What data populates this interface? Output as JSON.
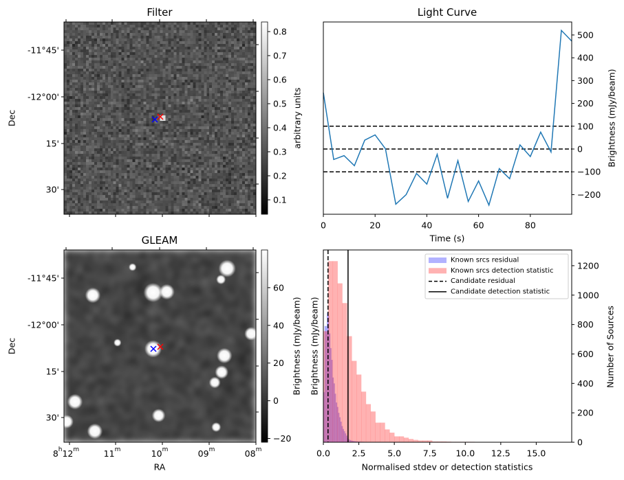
{
  "chart_data": [
    {
      "type": "heatmap",
      "title": "Filter",
      "xlabel": "",
      "ylabel": "Dec",
      "yticks": [
        "-11°45'",
        "-12°00'",
        "15'",
        "30'"
      ],
      "colorbar": {
        "label": "arbitrary units",
        "ticks": [
          "0.8",
          "0.7",
          "0.6",
          "0.5",
          "0.4",
          "0.3",
          "0.2",
          "0.1"
        ],
        "range": [
          0.04,
          0.84
        ],
        "colormap": "gray"
      },
      "markers": [
        {
          "color": "#0000ff",
          "symbol": "x"
        },
        {
          "color": "#ff0000",
          "symbol": "x"
        }
      ]
    },
    {
      "type": "line",
      "title": "Light Curve",
      "xlabel": "Time (s)",
      "ylabel": "Brightness (mJy/beam)",
      "xlim": [
        0,
        96
      ],
      "ylim": [
        -286,
        557
      ],
      "xticks": [
        "0",
        "20",
        "40",
        "60",
        "80"
      ],
      "yticks": [
        "500",
        "400",
        "300",
        "200",
        "100",
        "0",
        "−100",
        "−200"
      ],
      "color": "#1f77b4",
      "x": [
        0,
        4,
        8,
        12,
        16,
        20,
        24,
        28,
        32,
        36,
        40,
        44,
        48,
        52,
        56,
        60,
        64,
        68,
        72,
        76,
        80,
        84,
        88,
        92,
        96
      ],
      "y": [
        247,
        -46,
        -29,
        -73,
        39,
        62,
        1,
        -242,
        -200,
        -107,
        -154,
        -23,
        -216,
        -51,
        -230,
        -140,
        -246,
        -86,
        -130,
        18,
        -33,
        74,
        -13,
        520,
        473
      ],
      "hlines": [
        {
          "y": 100,
          "style": "dashed"
        },
        {
          "y": 0,
          "style": "dashed"
        },
        {
          "y": -100,
          "style": "dashed"
        }
      ]
    },
    {
      "type": "heatmap",
      "title": "GLEAM",
      "xlabel": "RA",
      "ylabel": "Dec",
      "xticks": [
        {
          "h": "8",
          "hs": "h",
          "m": "12",
          "ms": "m"
        },
        {
          "h": "",
          "hs": "",
          "m": "11",
          "ms": "m"
        },
        {
          "h": "",
          "hs": "",
          "m": "10",
          "ms": "m"
        },
        {
          "h": "",
          "hs": "",
          "m": "09",
          "ms": "m"
        },
        {
          "h": "",
          "hs": "",
          "m": "08",
          "ms": "m"
        }
      ],
      "yticks": [
        "-11°45'",
        "-12°00'",
        "15'",
        "30'"
      ],
      "colorbar": {
        "label": "Brightness (mJy/beam)",
        "ticks": [
          "60",
          "40",
          "20",
          "0",
          "−20"
        ],
        "range": [
          -22,
          80
        ],
        "colormap": "gray"
      },
      "markers": [
        {
          "color": "#0000ff",
          "symbol": "x"
        },
        {
          "color": "#ff0000",
          "symbol": "x"
        }
      ]
    },
    {
      "type": "bar",
      "subtype": "histogram",
      "title": "",
      "xlabel": "Normalised stdev or detection statistics",
      "ylabel_left": "Brightness (mJy/beam)",
      "ylabel_right": "Number of Sources",
      "xlim": [
        0,
        17.5
      ],
      "ylim": [
        0,
        1307
      ],
      "xticks": [
        "0.0",
        "2.5",
        "5.0",
        "7.5",
        "10.0",
        "12.5",
        "15.0"
      ],
      "yticks": [
        "0",
        "200",
        "400",
        "600",
        "800",
        "1000",
        "1200"
      ],
      "series": [
        {
          "name": "Known srcs residual",
          "color": "#0000ff",
          "alpha": 0.3,
          "bin_start": 0,
          "bin_width": 0.08,
          "values": [
            340,
            790,
            790,
            880,
            860,
            740,
            640,
            560,
            440,
            400,
            330,
            270,
            240,
            200,
            170,
            140,
            110,
            90,
            75,
            60,
            45,
            30,
            20,
            15,
            12,
            10,
            8,
            7,
            6,
            5,
            5,
            4,
            4,
            3,
            3,
            3,
            2,
            2,
            2,
            2,
            2,
            1,
            1,
            1,
            1,
            1,
            1,
            1,
            1,
            1,
            1,
            1,
            0,
            1,
            0,
            1
          ]
        },
        {
          "name": "Known srcs detection statistic",
          "color": "#ff0000",
          "alpha": 0.3,
          "bin_start": 0,
          "bin_width": 0.3333,
          "values": [
            755,
            1231,
            1231,
            1080,
            946,
            721,
            553,
            460,
            344,
            259,
            209,
            133,
            133,
            87,
            65,
            40,
            40,
            31,
            22,
            16,
            12,
            12,
            12,
            5,
            5,
            5,
            4,
            3,
            3,
            3,
            3,
            3,
            2,
            2,
            1,
            1,
            0,
            0,
            1,
            0,
            1,
            0,
            1,
            0,
            1,
            0,
            0,
            0,
            0,
            1
          ]
        }
      ],
      "vlines": [
        {
          "name": "Candidate residual",
          "x": 0.33,
          "style": "dashed"
        },
        {
          "name": "Candidate detection statistic",
          "x": 1.74,
          "style": "solid"
        }
      ],
      "legend_position": "top-right"
    }
  ]
}
